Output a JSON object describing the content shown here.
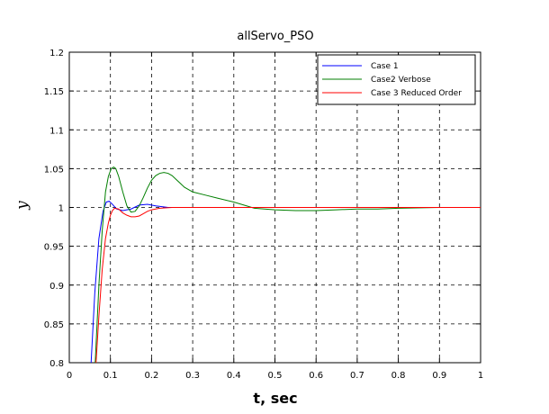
{
  "chart_data": {
    "type": "line",
    "title": "allServo_PSO",
    "xlabel": "t, sec",
    "ylabel": "y",
    "xlim": [
      0,
      1
    ],
    "ylim": [
      0.8,
      1.2
    ],
    "grid": true,
    "legend_position": "top-right",
    "xticks": [
      "0",
      "0.1",
      "0.2",
      "0.3",
      "0.4",
      "0.5",
      "0.6",
      "0.7",
      "0.8",
      "0.9",
      "1"
    ],
    "yticks": [
      "0.8",
      "0.85",
      "0.9",
      "0.95",
      "1",
      "1.05",
      "1.1",
      "1.15",
      "1.2"
    ],
    "series": [
      {
        "name": "Case 1",
        "color": "#0000ff",
        "x": [
          0.053,
          0.062,
          0.072,
          0.082,
          0.09,
          0.097,
          0.105,
          0.115,
          0.13,
          0.15,
          0.17,
          0.19,
          0.21,
          0.24,
          0.3,
          0.4,
          0.5,
          0.6,
          0.7,
          0.8,
          0.9,
          1.0
        ],
        "y": [
          0.8,
          0.89,
          0.96,
          0.995,
          1.007,
          1.008,
          1.004,
          0.998,
          0.996,
          0.998,
          1.003,
          1.004,
          1.002,
          1.0,
          1.0,
          1.0,
          1.0,
          1.0,
          1.0,
          1.0,
          1.0,
          1.0
        ]
      },
      {
        "name": "Case2 Verbose",
        "color": "#007f00",
        "x": [
          0.063,
          0.072,
          0.08,
          0.088,
          0.095,
          0.102,
          0.108,
          0.113,
          0.12,
          0.13,
          0.14,
          0.15,
          0.16,
          0.17,
          0.18,
          0.19,
          0.2,
          0.21,
          0.22,
          0.23,
          0.24,
          0.25,
          0.26,
          0.27,
          0.28,
          0.3,
          0.33,
          0.36,
          0.4,
          0.45,
          0.5,
          0.55,
          0.6,
          0.65,
          0.7,
          0.75,
          0.8,
          0.9,
          1.0
        ],
        "y": [
          0.8,
          0.9,
          0.97,
          1.02,
          1.04,
          1.05,
          1.052,
          1.05,
          1.04,
          1.02,
          1.002,
          0.994,
          0.995,
          1.002,
          1.013,
          1.025,
          1.035,
          1.041,
          1.044,
          1.045,
          1.044,
          1.041,
          1.036,
          1.031,
          1.026,
          1.02,
          1.016,
          1.012,
          1.007,
          0.999,
          0.997,
          0.996,
          0.996,
          0.997,
          0.998,
          0.998,
          0.999,
          1.0,
          1.0
        ]
      },
      {
        "name": "Case 3 Reduced Order",
        "color": "#ff0000",
        "x": [
          0.065,
          0.072,
          0.08,
          0.088,
          0.095,
          0.1,
          0.105,
          0.11,
          0.12,
          0.13,
          0.14,
          0.15,
          0.16,
          0.17,
          0.18,
          0.19,
          0.2,
          0.22,
          0.25,
          0.3,
          0.4,
          0.5,
          0.6,
          0.7,
          0.8,
          0.9,
          1.0
        ],
        "y": [
          0.8,
          0.86,
          0.92,
          0.96,
          0.98,
          0.99,
          0.996,
          0.999,
          0.998,
          0.993,
          0.99,
          0.988,
          0.988,
          0.989,
          0.992,
          0.995,
          0.997,
          0.999,
          1.0,
          1.0,
          1.0,
          1.0,
          1.0,
          1.0,
          1.0,
          1.0,
          1.0
        ]
      }
    ]
  }
}
